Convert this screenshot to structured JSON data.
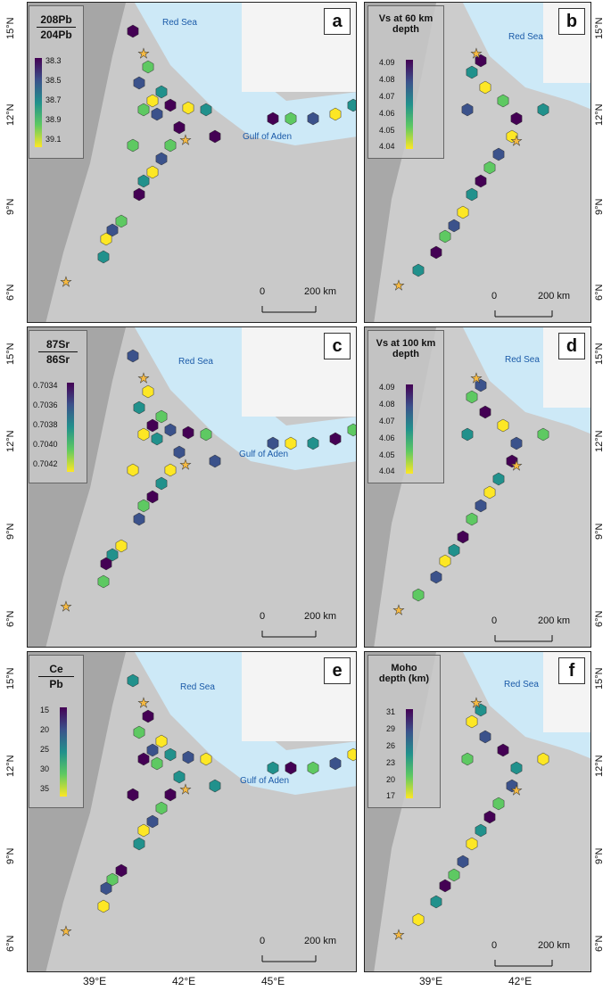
{
  "panels": [
    {
      "letter": "a",
      "legend_title_top": "208Pb",
      "legend_title_bot": "204Pb",
      "ticks": [
        "38.3",
        "38.5",
        "38.7",
        "38.9",
        "39.1"
      ]
    },
    {
      "letter": "b",
      "legend_title_top": "Vs at 60 km",
      "legend_title_bot": "depth",
      "ticks": [
        "4.09",
        "4.08",
        "4.07",
        "4.06",
        "4.05",
        "4.04"
      ]
    },
    {
      "letter": "c",
      "legend_title_top": "87Sr",
      "legend_title_bot": "86Sr",
      "ticks": [
        "0.7034",
        "0.7036",
        "0.7038",
        "0.7040",
        "0.7042"
      ]
    },
    {
      "letter": "d",
      "legend_title_top": "Vs at 100 km",
      "legend_title_bot": "depth",
      "ticks": [
        "4.09",
        "4.08",
        "4.07",
        "4.06",
        "4.05",
        "4.04"
      ]
    },
    {
      "letter": "e",
      "legend_title_top": "Ce",
      "legend_title_bot": "Pb",
      "ticks": [
        "15",
        "20",
        "25",
        "30",
        "35"
      ]
    },
    {
      "letter": "f",
      "legend_title_top": "Moho",
      "legend_title_bot": "depth (km)",
      "ticks": [
        "31",
        "29",
        "26",
        "23",
        "20",
        "17"
      ]
    }
  ],
  "places": {
    "red_sea": "Red Sea",
    "gulf_of_aden": "Gulf of Aden"
  },
  "lat_labels": [
    "15°N",
    "12°N",
    "9°N",
    "6°N"
  ],
  "lon_labels_left": [
    "39°E",
    "42°E",
    "45°E"
  ],
  "lon_labels_right": [
    "39°E",
    "42°E"
  ],
  "scale_bar": {
    "zero": "0",
    "distance": "200 km"
  },
  "colors": {
    "viridis": [
      "#440154",
      "#3b528b",
      "#21918c",
      "#5ec962",
      "#fde725"
    ],
    "water": "#cde9f7",
    "star": "#f5b942"
  }
}
